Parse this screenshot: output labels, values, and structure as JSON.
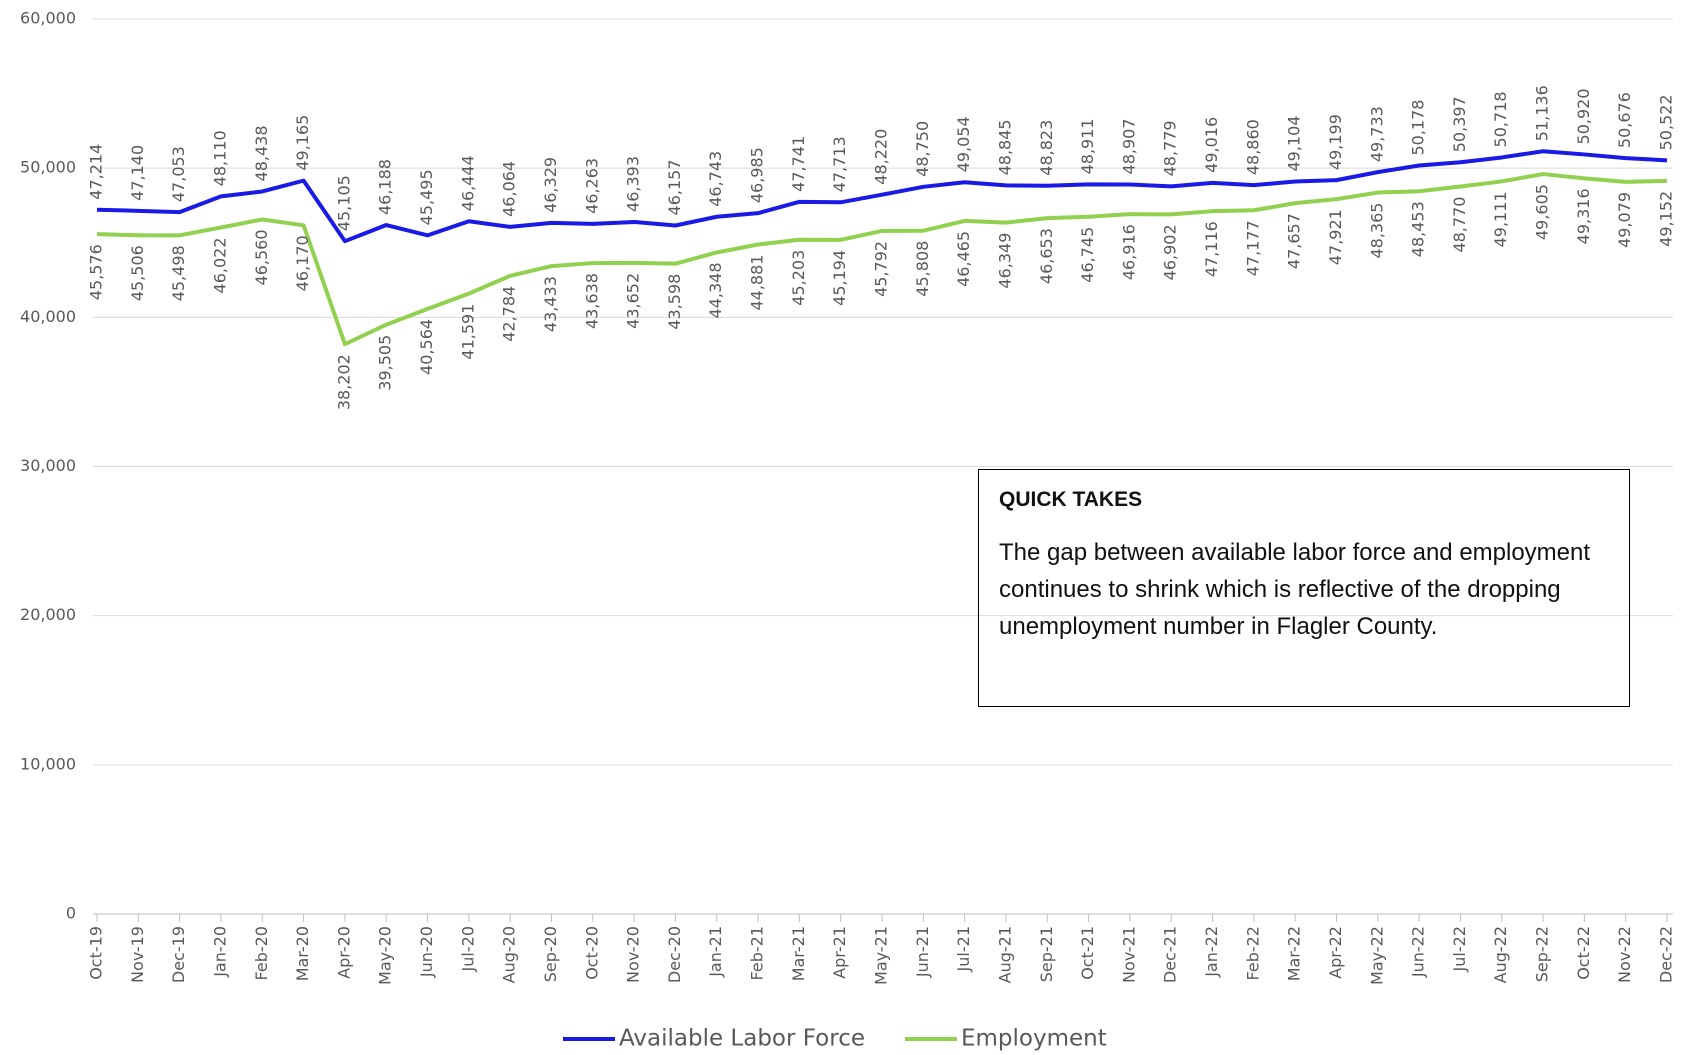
{
  "chart_data": {
    "type": "line",
    "categories": [
      "Oct-19",
      "Nov-19",
      "Dec-19",
      "Jan-20",
      "Feb-20",
      "Mar-20",
      "Apr-20",
      "May-20",
      "Jun-20",
      "Jul-20",
      "Aug-20",
      "Sep-20",
      "Oct-20",
      "Nov-20",
      "Dec-20",
      "Jan-21",
      "Feb-21",
      "Mar-21",
      "Apr-21",
      "May-21",
      "Jun-21",
      "Jul-21",
      "Aug-21",
      "Sep-21",
      "Oct-21",
      "Nov-21",
      "Dec-21",
      "Jan-22",
      "Feb-22",
      "Mar-22",
      "Apr-22",
      "May-22",
      "Jun-22",
      "Jul-22",
      "Aug-22",
      "Sep-22",
      "Oct-22",
      "Nov-22",
      "Dec-22"
    ],
    "series": [
      {
        "name": "Available Labor Force",
        "color": "#1a1ae6",
        "values": [
          47214,
          47140,
          47053,
          48110,
          48438,
          49165,
          45105,
          46188,
          45495,
          46444,
          46064,
          46329,
          46263,
          46393,
          46157,
          46743,
          46985,
          47741,
          47713,
          48220,
          48750,
          49054,
          48845,
          48823,
          48911,
          48907,
          48779,
          49016,
          48860,
          49104,
          49199,
          49733,
          50178,
          50397,
          50718,
          51136,
          50920,
          50676,
          50522
        ],
        "value_labels": [
          "47,214",
          "47,140",
          "47,053",
          "48,110",
          "48,438",
          "49,165",
          "45,105",
          "46,188",
          "45,495",
          "46,444",
          "46,064",
          "46,329",
          "46,263",
          "46,393",
          "46,157",
          "46,743",
          "46,985",
          "47,741",
          "47,713",
          "48,220",
          "48,750",
          "49,054",
          "48,845",
          "48,823",
          "48,911",
          "48,907",
          "48,779",
          "49,016",
          "48,860",
          "49,104",
          "49,199",
          "49,733",
          "50,178",
          "50,397",
          "50,718",
          "51,136",
          "50,920",
          "50,676",
          "50,522"
        ]
      },
      {
        "name": "Employment",
        "color": "#92d050",
        "values": [
          45576,
          45506,
          45498,
          46022,
          46560,
          46170,
          38202,
          39505,
          40564,
          41591,
          42784,
          43433,
          43638,
          43652,
          43598,
          44348,
          44881,
          45203,
          45194,
          45792,
          45808,
          46465,
          46349,
          46653,
          46745,
          46916,
          46902,
          47116,
          47177,
          47657,
          47921,
          48365,
          48453,
          48770,
          49111,
          49605,
          49316,
          49079,
          49152
        ],
        "value_labels": [
          "45,576",
          "45,506",
          "45,498",
          "46,022",
          "46,560",
          "46,170",
          "38,202",
          "39,505",
          "40,564",
          "41,591",
          "42,784",
          "43,433",
          "43,638",
          "43,652",
          "43,598",
          "44,348",
          "44,881",
          "45,203",
          "45,194",
          "45,792",
          "45,808",
          "46,465",
          "46,349",
          "46,653",
          "46,745",
          "46,916",
          "46,902",
          "47,116",
          "47,177",
          "47,657",
          "47,921",
          "48,365",
          "48,453",
          "48,770",
          "49,111",
          "49,605",
          "49,316",
          "49,079",
          "49,152"
        ]
      }
    ],
    "ylim": [
      0,
      60000
    ],
    "yticks": [
      0,
      {
        "value": 10000,
        "label": "10,000"
      },
      {
        "value": 20000,
        "label": "20,000"
      },
      {
        "value": 30000,
        "label": "30,000"
      },
      {
        "value": 40000,
        "label": "40,000"
      },
      {
        "value": 50000,
        "label": "50,000"
      },
      {
        "value": 60000,
        "label": "60,000"
      }
    ],
    "grid": true,
    "legend": "bottom",
    "annotation": {
      "title": "QUICK TAKES",
      "text": "The gap between available labor force and employment continues to shrink which is reflective of the dropping unemployment number in Flagler County."
    }
  }
}
